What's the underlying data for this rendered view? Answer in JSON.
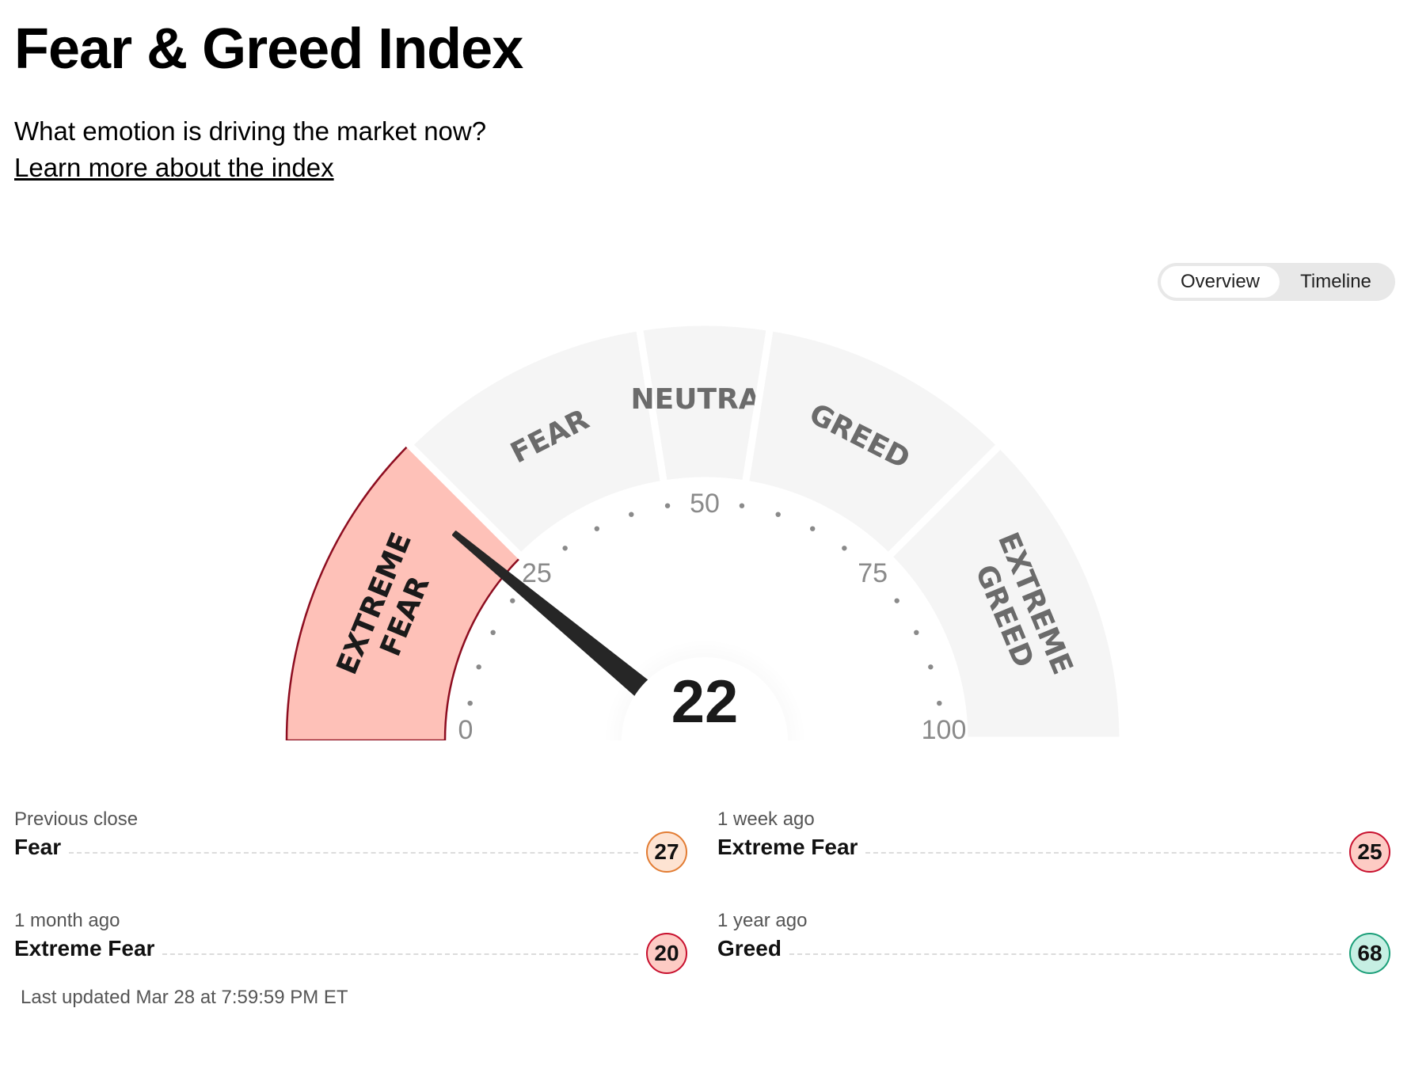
{
  "header": {
    "title": "Fear & Greed Index",
    "subtitle": "What emotion is driving the market now?",
    "learn_link": "Learn more about the index"
  },
  "toggle": {
    "overview": "Overview",
    "timeline": "Timeline",
    "selected": "Overview"
  },
  "gauge": {
    "value": 22,
    "value_text": "22",
    "active_segment": "extreme_fear",
    "active_fill": "#fec1b8",
    "active_stroke": "#8d0d20",
    "inactive_fill": "#f5f5f5",
    "segments": [
      {
        "id": "extreme_fear",
        "label_lines": [
          "EXTREME",
          "FEAR"
        ],
        "range": [
          0,
          25
        ]
      },
      {
        "id": "fear",
        "label_lines": [
          "FEAR"
        ],
        "range": [
          25,
          45
        ]
      },
      {
        "id": "neutral",
        "label_lines": [
          "NEUTRAL"
        ],
        "range": [
          45,
          55
        ]
      },
      {
        "id": "greed",
        "label_lines": [
          "GREED"
        ],
        "range": [
          55,
          75
        ]
      },
      {
        "id": "extreme_greed",
        "label_lines": [
          "EXTREME",
          "GREED"
        ],
        "range": [
          75,
          100
        ]
      }
    ],
    "ticks": [
      "0",
      "25",
      "50",
      "75",
      "100"
    ]
  },
  "history": [
    {
      "label": "Previous close",
      "rating": "Fear",
      "value": "27",
      "fill": "#fde3d2",
      "stroke": "#e27c33"
    },
    {
      "label": "1 week ago",
      "rating": "Extreme Fear",
      "value": "25",
      "fill": "#fdcbc4",
      "stroke": "#c8102e"
    },
    {
      "label": "1 month ago",
      "rating": "Extreme Fear",
      "value": "20",
      "fill": "#fdcbc4",
      "stroke": "#c8102e"
    },
    {
      "label": "1 year ago",
      "rating": "Greed",
      "value": "68",
      "fill": "#c6efe3",
      "stroke": "#1a9e78"
    }
  ],
  "last_updated": "Last updated Mar 28 at 7:59:59 PM ET"
}
